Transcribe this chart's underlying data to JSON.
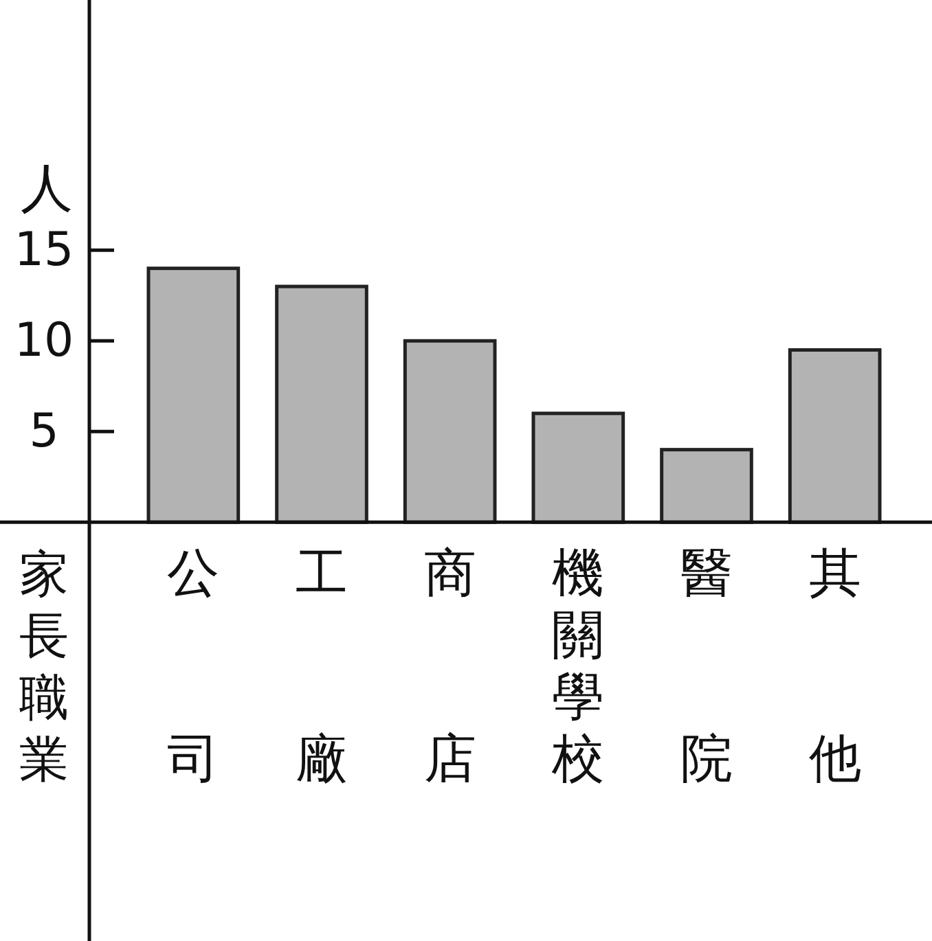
{
  "chart_data": {
    "type": "bar",
    "ylabel": "人",
    "xlabel": "家長職業",
    "categories": [
      "公司",
      "工廠",
      "商店",
      "機關學校",
      "醫院",
      "其他"
    ],
    "values": [
      14,
      13,
      10,
      6,
      4,
      9.5
    ],
    "color": "#b3b3b3",
    "ylim": [
      -23.1,
      28.8
    ],
    "yticks": [
      5,
      10,
      15
    ],
    "grid": false
  }
}
